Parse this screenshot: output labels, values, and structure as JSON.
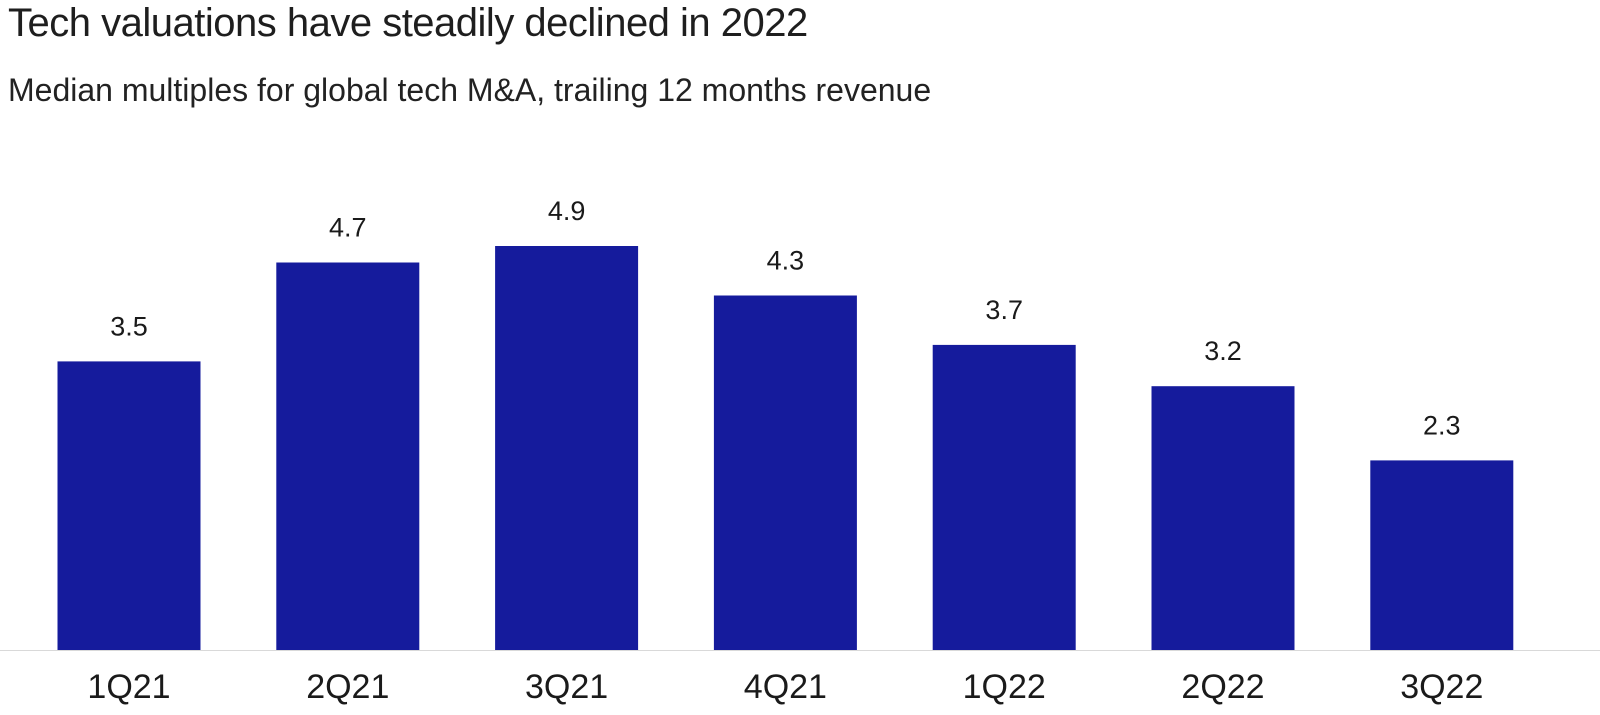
{
  "chart_data": {
    "type": "bar",
    "title": "Tech valuations have steadily declined in 2022",
    "subtitle": "Median multiples for global tech M&A, trailing 12 months revenue",
    "categories": [
      "1Q21",
      "2Q21",
      "3Q21",
      "4Q21",
      "1Q22",
      "2Q22",
      "3Q22"
    ],
    "values": [
      3.5,
      4.7,
      4.9,
      4.3,
      3.7,
      3.2,
      2.3
    ],
    "value_labels": [
      "3.5",
      "4.7",
      "4.9",
      "4.3",
      "3.7",
      "3.2",
      "2.3"
    ],
    "xlabel": "",
    "ylabel": "",
    "ylim": [
      0,
      4.9
    ],
    "grid": false,
    "bar_color": "#151b9c",
    "baseline_color": "#d9d9d9"
  }
}
